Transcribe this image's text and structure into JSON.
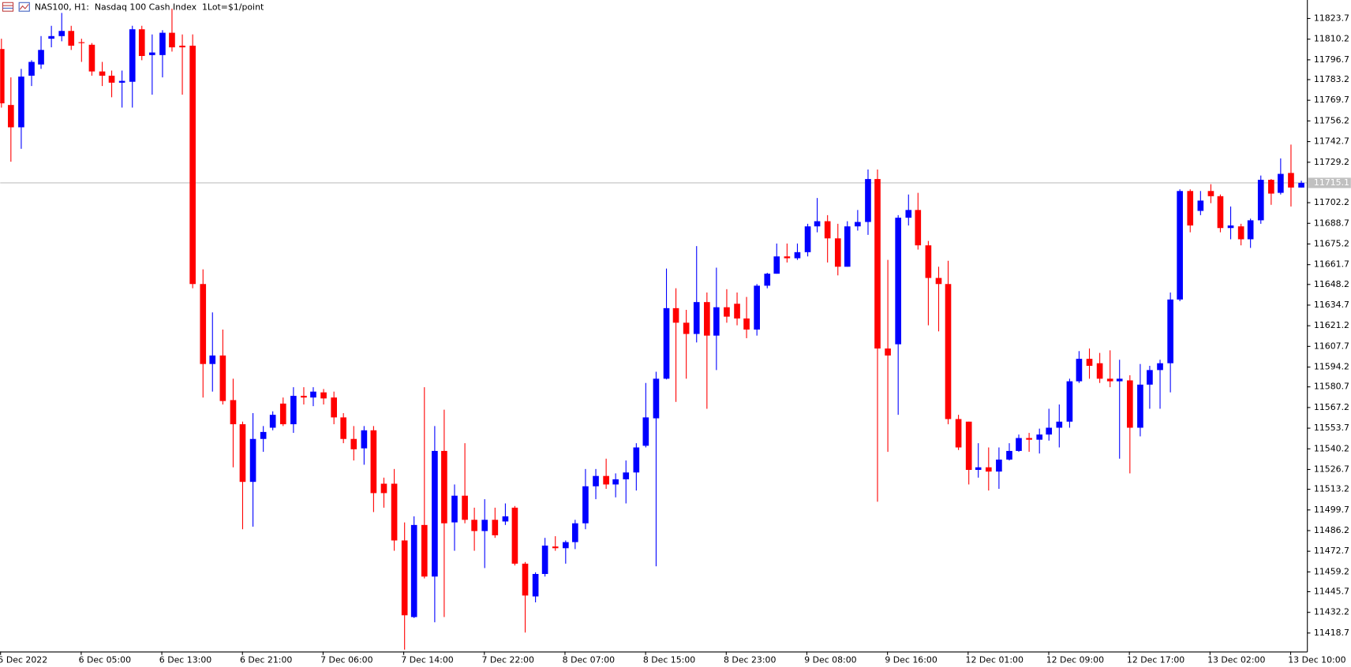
{
  "chart_data": {
    "type": "candlestick",
    "title": "NAS100, H1:  Nasdaq 100 Cash Index  1Lot=$1/point",
    "categories": [
      "5 Dec 2022",
      null,
      null,
      null,
      null,
      null,
      null,
      null,
      "6 Dec 05:00",
      null,
      null,
      null,
      null,
      null,
      null,
      null,
      "6 Dec 13:00",
      null,
      null,
      null,
      null,
      null,
      null,
      null,
      "6 Dec 21:00",
      null,
      null,
      null,
      null,
      null,
      null,
      null,
      "7 Dec 06:00",
      null,
      null,
      null,
      null,
      null,
      null,
      null,
      "7 Dec 14:00",
      null,
      null,
      null,
      null,
      null,
      null,
      null,
      "7 Dec 22:00",
      null,
      null,
      null,
      null,
      null,
      null,
      null,
      "8 Dec 07:00",
      null,
      null,
      null,
      null,
      null,
      null,
      null,
      "8 Dec 15:00",
      null,
      null,
      null,
      null,
      null,
      null,
      null,
      "8 Dec 23:00",
      null,
      null,
      null,
      null,
      null,
      null,
      null,
      "9 Dec 08:00",
      null,
      null,
      null,
      null,
      null,
      null,
      null,
      "9 Dec 16:00",
      null,
      null,
      null,
      null,
      null,
      null,
      null,
      "12 Dec 01:00",
      null,
      null,
      null,
      null,
      null,
      null,
      null,
      "12 Dec 09:00",
      null,
      null,
      null,
      null,
      null,
      null,
      null,
      "12 Dec 17:00",
      null,
      null,
      null,
      null,
      null,
      null,
      null,
      "13 Dec 02:00",
      null,
      null,
      null,
      null,
      null,
      null,
      null,
      "13 Dec 10:00",
      null
    ],
    "open": [
      11803.3,
      11766.4,
      11751.7,
      11785.7,
      11793.1,
      11810.1,
      11811.8,
      11815.2,
      11807.8,
      11806.1,
      11788.5,
      11785.7,
      11781.1,
      11781.7,
      11816.3,
      11799.3,
      11799.3,
      11814.0,
      11805.5,
      11805.5,
      11648.4,
      11595.7,
      11601.3,
      11571.9,
      11556.0,
      11518.0,
      11546.3,
      11553.7,
      11569.6,
      11556.0,
      11574.7,
      11573.6,
      11577.0,
      11573.6,
      11560.5,
      11546.3,
      11540.1,
      11552.0,
      11516.8,
      11516.8,
      11479.4,
      11428.9,
      11489.6,
      11455.6,
      11538.4,
      11491.3,
      11508.9,
      11493.0,
      11485.6,
      11493.0,
      11491.9,
      11501.0,
      11464.1,
      11442.5,
      11457.3,
      11475.4,
      11474.3,
      11478.3,
      11490.7,
      11515.1,
      11521.9,
      11516.3,
      11519.7,
      11524.2,
      11541.8,
      11559.9,
      11586.0,
      11632.5,
      11622.9,
      11615.5,
      11636.5,
      11614.4,
      11633.1,
      11635.4,
      11625.7,
      11618.4,
      11647.3,
      11655.2,
      11666.6,
      11665.4,
      11669.4,
      11686.4,
      11689.8,
      11678.5,
      11659.8,
      11686.4,
      11689.3,
      11717.6,
      11605.9,
      11608.7,
      11692.1,
      11697.2,
      11673.9,
      11652.4,
      11648.4,
      11559.4,
      11557.7,
      11525.9,
      11527.6,
      11524.8,
      11532.7,
      11538.4,
      11546.9,
      11545.8,
      11549.2,
      11553.7,
      11557.7,
      11584.3,
      11599.1,
      11596.2,
      11586.0,
      11584.3,
      11584.9,
      11553.7,
      11582.1,
      11591.7,
      11596.2,
      11638.2,
      11709.7,
      11696.6,
      11709.7,
      11706.3,
      11685.3,
      11686.4,
      11677.9,
      11690.4,
      11717.1,
      11708.5,
      11721.6,
      11712.0
    ],
    "high": [
      11810.1,
      11784.6,
      11790.2,
      11795.9,
      11811.8,
      11818.6,
      11827.1,
      11818.6,
      11810.1,
      11807.2,
      11794.8,
      11789.1,
      11789.1,
      11818.6,
      11818.6,
      11812.9,
      11815.7,
      11829.9,
      11812.9,
      11812.9,
      11658.1,
      11629.7,
      11618.4,
      11586.0,
      11557.7,
      11563.3,
      11554.8,
      11564.5,
      11573.6,
      11580.4,
      11580.4,
      11580.4,
      11579.2,
      11577.5,
      11563.3,
      11554.8,
      11554.8,
      11554.8,
      11520.8,
      11526.5,
      11491.3,
      11495.3,
      11580.4,
      11554.8,
      11565.6,
      11516.3,
      11543.5,
      11501.0,
      11506.6,
      11501.0,
      11503.8,
      11502.1,
      11465.2,
      11458.4,
      11481.1,
      11482.2,
      11479.4,
      11493.0,
      11526.5,
      11526.5,
      11533.3,
      11523.6,
      11532.1,
      11543.5,
      11583.2,
      11590.6,
      11658.6,
      11645.6,
      11631.4,
      11673.4,
      11642.8,
      11659.2,
      11645.0,
      11642.8,
      11639.9,
      11648.4,
      11655.8,
      11675.1,
      11675.1,
      11675.1,
      11688.1,
      11705.1,
      11693.8,
      11688.1,
      11689.8,
      11697.2,
      11723.9,
      11723.9,
      11664.3,
      11693.8,
      11707.4,
      11708.5,
      11676.8,
      11659.8,
      11663.7,
      11562.2,
      11557.7,
      11543.5,
      11540.7,
      11540.7,
      11543.5,
      11549.2,
      11550.3,
      11553.1,
      11566.2,
      11569.0,
      11586.0,
      11604.2,
      11605.9,
      11603.0,
      11604.7,
      11598.5,
      11588.3,
      11595.7,
      11594.5,
      11598.5,
      11642.8,
      11710.8,
      11710.8,
      11709.7,
      11714.2,
      11707.4,
      11699.5,
      11688.1,
      11691.5,
      11719.9,
      11717.6,
      11731.2,
      11740.3,
      11716.5
    ],
    "low": [
      11764.7,
      11729.0,
      11737.5,
      11778.9,
      11790.2,
      11804.4,
      11808.4,
      11802.7,
      11794.8,
      11785.7,
      11778.9,
      11771.5,
      11764.7,
      11764.7,
      11795.9,
      11773.2,
      11784.6,
      11801.6,
      11773.2,
      11645.6,
      11573.6,
      11577.5,
      11569.0,
      11527.6,
      11486.8,
      11488.5,
      11537.8,
      11552.0,
      11554.8,
      11550.3,
      11569.0,
      11567.9,
      11569.0,
      11556.0,
      11543.5,
      11532.1,
      11529.3,
      11498.1,
      11501.0,
      11472.6,
      11407.4,
      11428.3,
      11454.4,
      11425.5,
      11428.9,
      11472.6,
      11490.7,
      11472.6,
      11461.2,
      11481.1,
      11489.6,
      11462.9,
      11418.7,
      11438.6,
      11455.6,
      11472.6,
      11464.1,
      11473.7,
      11486.8,
      11506.6,
      11513.4,
      11507.8,
      11503.8,
      11512.3,
      11540.7,
      11462.4,
      11585.5,
      11570.7,
      11586.0,
      11609.9,
      11566.2,
      11591.7,
      11622.9,
      11621.2,
      11612.7,
      11614.4,
      11645.6,
      11655.2,
      11662.6,
      11664.3,
      11666.6,
      11682.5,
      11662.6,
      11654.1,
      11659.8,
      11683.6,
      11680.8,
      11504.9,
      11537.8,
      11562.2,
      11687.0,
      11671.1,
      11621.2,
      11617.2,
      11556.0,
      11539.0,
      11516.3,
      11520.8,
      11512.3,
      11513.4,
      11532.1,
      11537.8,
      11537.8,
      11536.7,
      11545.2,
      11540.7,
      11553.7,
      11583.2,
      11586.0,
      11583.2,
      11580.4,
      11533.3,
      11523.6,
      11548.0,
      11566.2,
      11566.2,
      11577.0,
      11637.1,
      11682.5,
      11693.8,
      11701.7,
      11682.5,
      11677.9,
      11673.9,
      11672.2,
      11688.1,
      11700.6,
      11707.4,
      11699.5,
      11712.0
    ],
    "close": [
      11767.5,
      11751.7,
      11785.1,
      11794.8,
      11802.7,
      11811.8,
      11815.2,
      11805.5,
      11807.2,
      11788.5,
      11785.7,
      11781.1,
      11782.3,
      11816.3,
      11798.7,
      11801.0,
      11814.0,
      11804.4,
      11804.4,
      11648.4,
      11595.7,
      11601.3,
      11571.3,
      11556.0,
      11518.0,
      11546.3,
      11550.9,
      11562.2,
      11556.0,
      11574.7,
      11573.6,
      11577.5,
      11573.0,
      11560.5,
      11546.3,
      11539.5,
      11552.0,
      11510.6,
      11510.6,
      11479.4,
      11430.1,
      11489.6,
      11455.6,
      11538.4,
      11490.7,
      11508.9,
      11493.0,
      11485.6,
      11493.0,
      11482.8,
      11495.3,
      11464.1,
      11443.1,
      11457.3,
      11476.0,
      11474.3,
      11478.3,
      11490.7,
      11515.1,
      11521.9,
      11516.3,
      11519.7,
      11524.2,
      11540.7,
      11560.5,
      11586.0,
      11632.5,
      11622.9,
      11615.5,
      11636.5,
      11614.4,
      11633.1,
      11626.9,
      11625.7,
      11618.4,
      11647.3,
      11655.2,
      11666.6,
      11665.4,
      11669.4,
      11686.4,
      11689.8,
      11678.5,
      11659.8,
      11686.4,
      11689.3,
      11717.6,
      11605.9,
      11601.3,
      11692.1,
      11697.2,
      11673.9,
      11652.4,
      11648.4,
      11559.4,
      11540.7,
      11525.9,
      11527.6,
      11524.8,
      11532.7,
      11538.4,
      11546.9,
      11545.8,
      11549.2,
      11553.7,
      11557.7,
      11584.3,
      11599.1,
      11594.5,
      11586.0,
      11584.3,
      11586.0,
      11553.7,
      11582.1,
      11591.7,
      11596.2,
      11638.2,
      11709.7,
      11687.0,
      11703.4,
      11706.3,
      11685.3,
      11687.0,
      11677.9,
      11690.4,
      11717.1,
      11708.0,
      11721.0,
      11712.0,
      11715.1
    ],
    "up_color": "#0000ff",
    "down_color": "#ff0000",
    "ylim": [
      11406.2,
      11835.6
    ],
    "yticks": [
      11823.7,
      11810.2,
      11796.7,
      11783.2,
      11769.7,
      11756.2,
      11742.7,
      11729.2,
      11702.2,
      11688.7,
      11675.2,
      11661.7,
      11648.2,
      11634.7,
      11621.2,
      11607.7,
      11594.2,
      11580.7,
      11567.2,
      11553.7,
      11540.2,
      11526.7,
      11513.2,
      11499.7,
      11486.2,
      11472.7,
      11459.2,
      11445.7,
      11432.2,
      11418.7
    ],
    "last_price": 11715.1,
    "last_price_color": "#c0c0c0"
  }
}
